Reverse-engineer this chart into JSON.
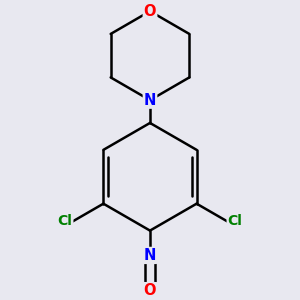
{
  "background_color": "#e8e8f0",
  "bond_color": "#000000",
  "atom_colors": {
    "O": "#ff0000",
    "N": "#0000ff",
    "Cl": "#008000"
  },
  "bond_width": 1.8,
  "figsize": [
    3.0,
    3.0
  ],
  "dpi": 100
}
